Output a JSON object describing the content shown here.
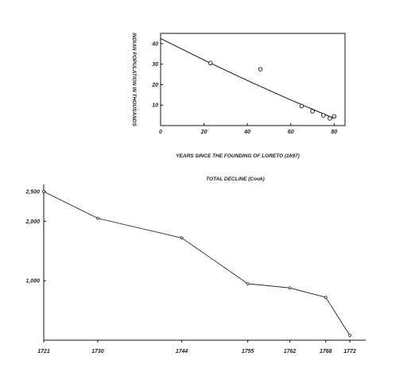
{
  "chart_data": [
    {
      "type": "scatter",
      "title": "",
      "xlabel": "YEARS SINCE THE FOUNDING OF LORETO (1697)",
      "ylabel": "INDIAN POPULATION IN THOUSANDS",
      "xlim": [
        0,
        85
      ],
      "ylim": [
        0,
        45
      ],
      "x_ticks": [
        "0",
        "20",
        "40",
        "60",
        "80"
      ],
      "x_tick_values": [
        0,
        20,
        40,
        60,
        80
      ],
      "y_ticks": [
        "10",
        "20",
        "30",
        "40"
      ],
      "y_tick_values": [
        10,
        20,
        30,
        40
      ],
      "grid": false,
      "points": [
        {
          "x": 23,
          "y": 30.5
        },
        {
          "x": 46,
          "y": 27.5
        },
        {
          "x": 65,
          "y": 9.5
        },
        {
          "x": 70,
          "y": 7
        },
        {
          "x": 75,
          "y": 5
        },
        {
          "x": 78,
          "y": 3.5
        },
        {
          "x": 80,
          "y": 4.5
        }
      ],
      "fit_curve": [
        {
          "x": 0,
          "y": 42.5
        },
        {
          "x": 20,
          "y": 32
        },
        {
          "x": 40,
          "y": 22
        },
        {
          "x": 60,
          "y": 12.5
        },
        {
          "x": 70,
          "y": 8
        },
        {
          "x": 80,
          "y": 3.5
        }
      ]
    },
    {
      "type": "line",
      "title": "TOTAL DECLINE (Cook)",
      "xlabel": "",
      "ylabel": "",
      "x": [
        1721,
        1730,
        1744,
        1755,
        1762,
        1768,
        1772
      ],
      "x_ticks": [
        "1721",
        "1730",
        "1744",
        "1755",
        "1762",
        "1768",
        "1772"
      ],
      "values": [
        2500,
        2050,
        1720,
        950,
        880,
        720,
        80
      ],
      "xlim": [
        1721,
        1772
      ],
      "ylim": [
        0,
        2500
      ],
      "y_ticks": [
        "2,500",
        "2,000",
        "1,000"
      ],
      "y_tick_values": [
        2500,
        2000,
        1000
      ],
      "grid": false
    }
  ]
}
